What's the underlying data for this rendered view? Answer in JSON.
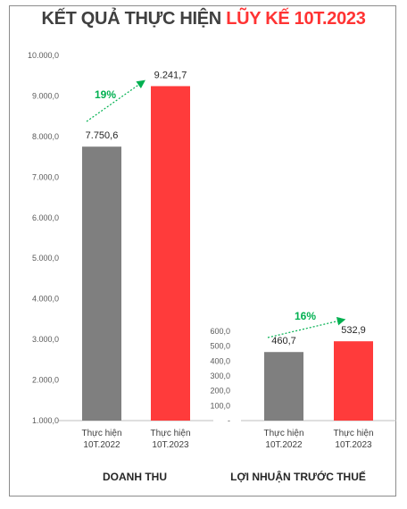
{
  "header": {
    "title_part1": "KẾT QUẢ THỰC HIỆN",
    "title_part2": "LŨY KẾ 10T.2023"
  },
  "colors": {
    "bar_2022": "#7f7f7f",
    "bar_2023": "#ff3b3b",
    "growth_arrow": "#00b050",
    "title_dark": "#404040",
    "title_accent": "#ff3333"
  },
  "chart_data": [
    {
      "type": "bar",
      "group_label": "DOANH THU",
      "categories": [
        [
          "Thực hiện",
          "10T.2022"
        ],
        [
          "Thực hiện",
          "10T.2023"
        ]
      ],
      "values": [
        7750.6,
        9241.7
      ],
      "value_labels": [
        "7.750,6",
        "9.241,7"
      ],
      "ylim": [
        1000,
        10000
      ],
      "yticks": [
        1000,
        2000,
        3000,
        4000,
        5000,
        6000,
        7000,
        8000,
        9000,
        10000
      ],
      "ytick_labels": [
        "1.000,0",
        "2.000,0",
        "3.000,0",
        "4.000,0",
        "5.000,0",
        "6.000,0",
        "7.000,0",
        "8.000,0",
        "9.000,0",
        "10.000,0"
      ],
      "growth_label": "19%",
      "grid": false,
      "legend": "none"
    },
    {
      "type": "bar",
      "group_label": "LỢI NHUẬN TRƯỚC THUẾ",
      "categories": [
        [
          "Thực hiện",
          "10T.2022"
        ],
        [
          "Thực hiện",
          "10T.2023"
        ]
      ],
      "values": [
        460.7,
        532.9
      ],
      "value_labels": [
        "460,7",
        "532,9"
      ],
      "ylim": [
        0,
        600
      ],
      "yticks": [
        0,
        100,
        200,
        300,
        400,
        500,
        600
      ],
      "ytick_labels": [
        "-",
        "100,0",
        "200,0",
        "300,0",
        "400,0",
        "500,0",
        "600,0"
      ],
      "growth_label": "16%",
      "grid": false,
      "legend": "none"
    }
  ]
}
